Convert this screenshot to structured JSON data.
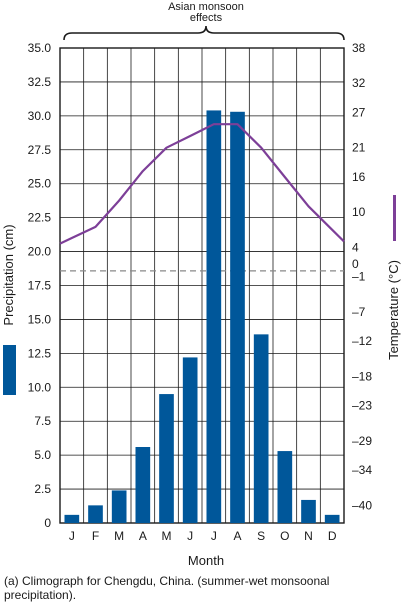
{
  "chart_data": {
    "type": "bar+line",
    "categories": [
      "J",
      "F",
      "M",
      "A",
      "M",
      "J",
      "J",
      "A",
      "S",
      "O",
      "N",
      "D"
    ],
    "series": [
      {
        "name": "Precipitation (cm)",
        "type": "bar",
        "axis": "left",
        "color": "#00579a",
        "values": [
          0.6,
          1.3,
          2.4,
          5.6,
          9.5,
          12.2,
          30.4,
          30.3,
          13.9,
          5.3,
          1.7,
          0.6
        ]
      },
      {
        "name": "Temperature (°C)",
        "type": "line",
        "axis": "right",
        "color": "#7d3f98",
        "values": [
          5.6,
          7.5,
          12,
          17,
          21,
          23,
          25,
          25,
          21,
          16,
          11,
          7
        ]
      }
    ],
    "xlabel": "Month",
    "left_axis": {
      "label": "Precipitation (cm)",
      "ylim": [
        0,
        35
      ],
      "ticks": [
        "0",
        "2.5",
        "5.0",
        "7.5",
        "10.0",
        "12.5",
        "15.0",
        "17.5",
        "20.0",
        "22.5",
        "25.0",
        "27.5",
        "30.0",
        "32.5",
        "35.0"
      ]
    },
    "right_axis": {
      "label": "Temperature (°C)",
      "ylim": [
        -43,
        38
      ],
      "tick_values": [
        -40,
        -34,
        -29,
        -23,
        -18,
        -12,
        -7,
        -1,
        4,
        10,
        16,
        21,
        27,
        32,
        38
      ],
      "ticks": [
        "–40",
        "–34",
        "–29",
        "–23",
        "–18",
        "–12",
        "–7",
        "–1",
        "4",
        "10",
        "16",
        "21",
        "27",
        "32",
        "38"
      ],
      "zero_marker": "0",
      "zero_value": 0
    },
    "annotation": {
      "line1": "Asian monsoon",
      "line2": "effects"
    },
    "grid": true,
    "colors": {
      "bar": "#00579a",
      "line": "#7d3f98",
      "zero_line": "#888888"
    }
  },
  "caption": "(a) Climograph for Chengdu, China. (summer-wet monsoonal precipitation)."
}
